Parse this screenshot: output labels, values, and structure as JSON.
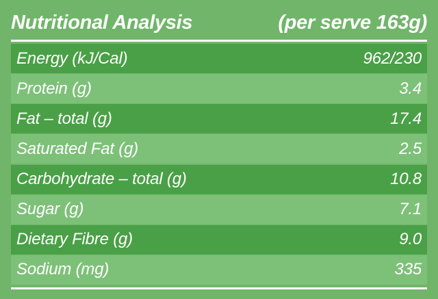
{
  "header": {
    "title": "Nutritional Analysis",
    "serve": "(per serve 163g)"
  },
  "rows": [
    {
      "label": "Energy (kJ/Cal)",
      "value": "962/230"
    },
    {
      "label": "Protein (g)",
      "value": "3.4"
    },
    {
      "label": "Fat – total (g)",
      "value": "17.4"
    },
    {
      "label": "Saturated Fat (g)",
      "value": "2.5"
    },
    {
      "label": "Carbohydrate – total (g)",
      "value": "10.8"
    },
    {
      "label": "Sugar (g)",
      "value": "7.1"
    },
    {
      "label": "Dietary Fibre (g)",
      "value": "9.0"
    },
    {
      "label": "Sodium (mg)",
      "value": "335"
    }
  ],
  "colors": {
    "background": "#71b56b",
    "row_dark": "#4aa046",
    "row_light": "#7dc178",
    "text": "#ffffff"
  }
}
